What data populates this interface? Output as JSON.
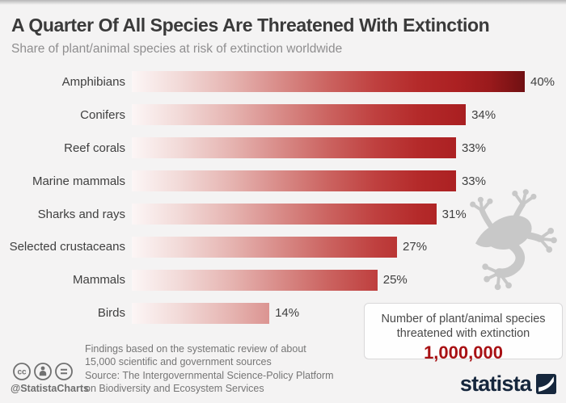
{
  "header": {
    "title": "A Quarter Of All Species Are Threatened With Extinction",
    "subtitle": "Share of plant/animal species at risk of extinction worldwide"
  },
  "chart_data": {
    "type": "bar",
    "orientation": "horizontal",
    "categories": [
      "Amphibians",
      "Conifers",
      "Reef corals",
      "Marine mammals",
      "Sharks and rays",
      "Selected crustaceans",
      "Mammals",
      "Birds"
    ],
    "values": [
      40,
      34,
      33,
      33,
      31,
      27,
      25,
      14
    ],
    "value_suffix": "%",
    "xlim": [
      0,
      40
    ],
    "grid": false,
    "legend": false,
    "bar_gradient": [
      "#fcf6f6",
      "#6f1013"
    ],
    "title": "A Quarter Of All Species Are Threatened With Extinction",
    "subtitle": "Share of plant/animal species at risk of extinction worldwide"
  },
  "callout": {
    "line1": "Number of plant/animal species",
    "line2": "threatened with extinction",
    "value": "1,000,000"
  },
  "footer": {
    "note_line1": "Findings based on the systematic review of about",
    "note_line2": "15,000 scientific and government sources",
    "source_line1": "Source: The Intergovernmental Science-Policy Platform",
    "source_line2": "on Biodiversity and Ecosystem Services",
    "credit": "@StatistaCharts",
    "brand": "statista"
  },
  "colors": {
    "background": "#f4f3f3",
    "bar_dark_end": "#6f1013",
    "callout_value": "#a81114",
    "brand_navy": "#16273d",
    "frog_gray": "#c8c8c8"
  }
}
